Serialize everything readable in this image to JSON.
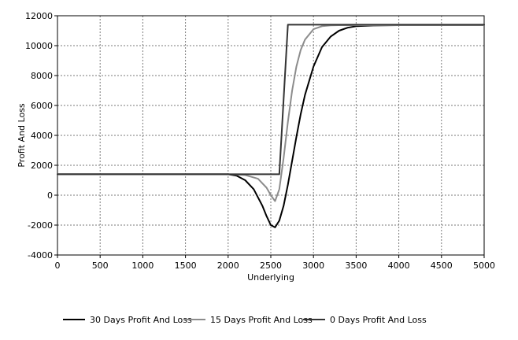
{
  "chart_data": {
    "type": "line",
    "title": "",
    "xlabel": "Underlying",
    "ylabel": "Profit And Loss",
    "xlim": [
      0,
      5000
    ],
    "ylim": [
      -4000,
      12000
    ],
    "x_ticks": [
      0,
      500,
      1000,
      1500,
      2000,
      2500,
      3000,
      3500,
      4000,
      4500,
      5000
    ],
    "y_ticks": [
      -4000,
      -2000,
      0,
      2000,
      4000,
      6000,
      8000,
      10000,
      12000
    ],
    "grid": true,
    "legend_position": "bottom",
    "series": [
      {
        "name": "30 Days Profit And Loss",
        "color": "#000000",
        "x": [
          0,
          2000,
          2100,
          2200,
          2300,
          2400,
          2450,
          2500,
          2550,
          2600,
          2650,
          2700,
          2750,
          2800,
          2850,
          2900,
          3000,
          3100,
          3200,
          3300,
          3400,
          3500,
          3700,
          4000,
          5000
        ],
        "y": [
          1400,
          1400,
          1300,
          1000,
          400,
          -700,
          -1400,
          -2000,
          -2150,
          -1700,
          -700,
          700,
          2300,
          3900,
          5400,
          6700,
          8600,
          9900,
          10600,
          11000,
          11200,
          11300,
          11350,
          11370,
          11370
        ]
      },
      {
        "name": "15 Days Profit And Loss",
        "color": "#8c8c8c",
        "x": [
          0,
          2000,
          2200,
          2350,
          2450,
          2500,
          2550,
          2600,
          2650,
          2700,
          2750,
          2800,
          2850,
          2900,
          3000,
          3100,
          3200,
          3300,
          3500,
          5000
        ],
        "y": [
          1400,
          1400,
          1350,
          1100,
          500,
          0,
          -400,
          400,
          2500,
          4900,
          7000,
          8600,
          9700,
          10400,
          11100,
          11300,
          11360,
          11370,
          11370,
          11370
        ]
      },
      {
        "name": "0 Days Profit And Loss",
        "color": "#333333",
        "x": [
          0,
          2600,
          2700,
          5000
        ],
        "y": [
          1400,
          1400,
          11400,
          11400
        ]
      }
    ]
  }
}
